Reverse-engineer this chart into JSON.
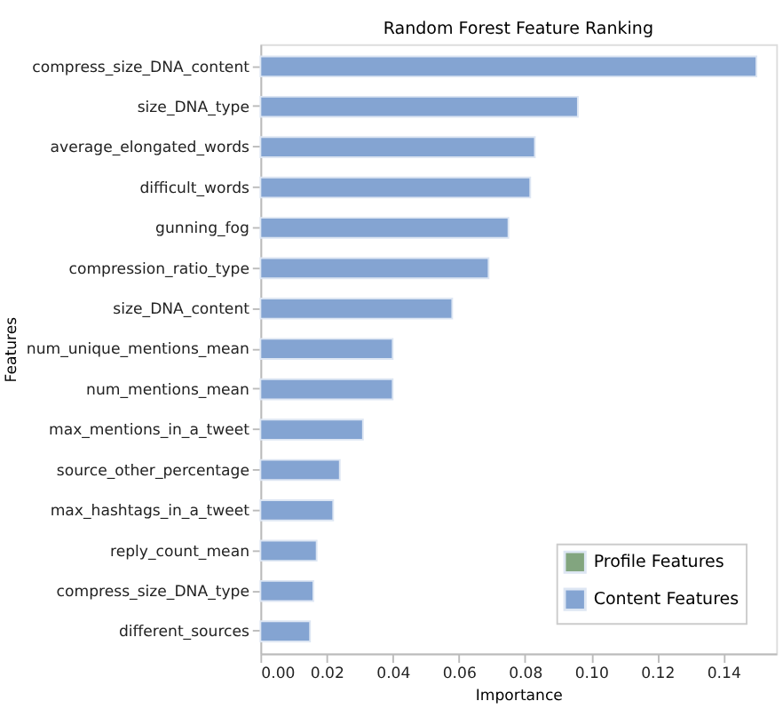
{
  "chart_data": {
    "type": "bar",
    "orientation": "horizontal",
    "title": "Random Forest Feature Ranking",
    "xlabel": "Importance",
    "ylabel": "Features",
    "categories": [
      "compress_size_DNA_content",
      "size_DNA_type",
      "average_elongated_words",
      "difficult_words",
      "gunning_fog",
      "compression_ratio_type",
      "size_DNA_content",
      "num_unique_mentions_mean",
      "num_mentions_mean",
      "max_mentions_in_a_tweet",
      "source_other_percentage",
      "max_hashtags_in_a_tweet",
      "reply_count_mean",
      "compress_size_DNA_type",
      "different_sources"
    ],
    "series": [
      {
        "name": "Profile Features",
        "color": "#82a57f",
        "values": [
          null,
          null,
          null,
          null,
          null,
          null,
          null,
          null,
          null,
          null,
          null,
          null,
          null,
          null,
          null
        ]
      },
      {
        "name": "Content Features",
        "color": "#84a4d2",
        "values": [
          0.15,
          0.096,
          0.083,
          0.0816,
          0.075,
          0.069,
          0.058,
          0.04,
          0.04,
          0.031,
          0.024,
          0.022,
          0.017,
          0.016,
          0.015
        ]
      }
    ],
    "xlim": [
      0,
      0.156
    ],
    "xticks": [
      {
        "value": 0,
        "label": "0.00"
      },
      {
        "value": 0.02,
        "label": "0.02"
      },
      {
        "value": 0.04,
        "label": "0.04"
      },
      {
        "value": 0.06,
        "label": "0.06"
      },
      {
        "value": 0.08,
        "label": "0.08"
      },
      {
        "value": 0.1,
        "label": "0.10"
      },
      {
        "value": 0.12,
        "label": "0.12"
      },
      {
        "value": 0.14,
        "label": "0.14"
      }
    ],
    "grid": false,
    "legend": "bottom right"
  }
}
